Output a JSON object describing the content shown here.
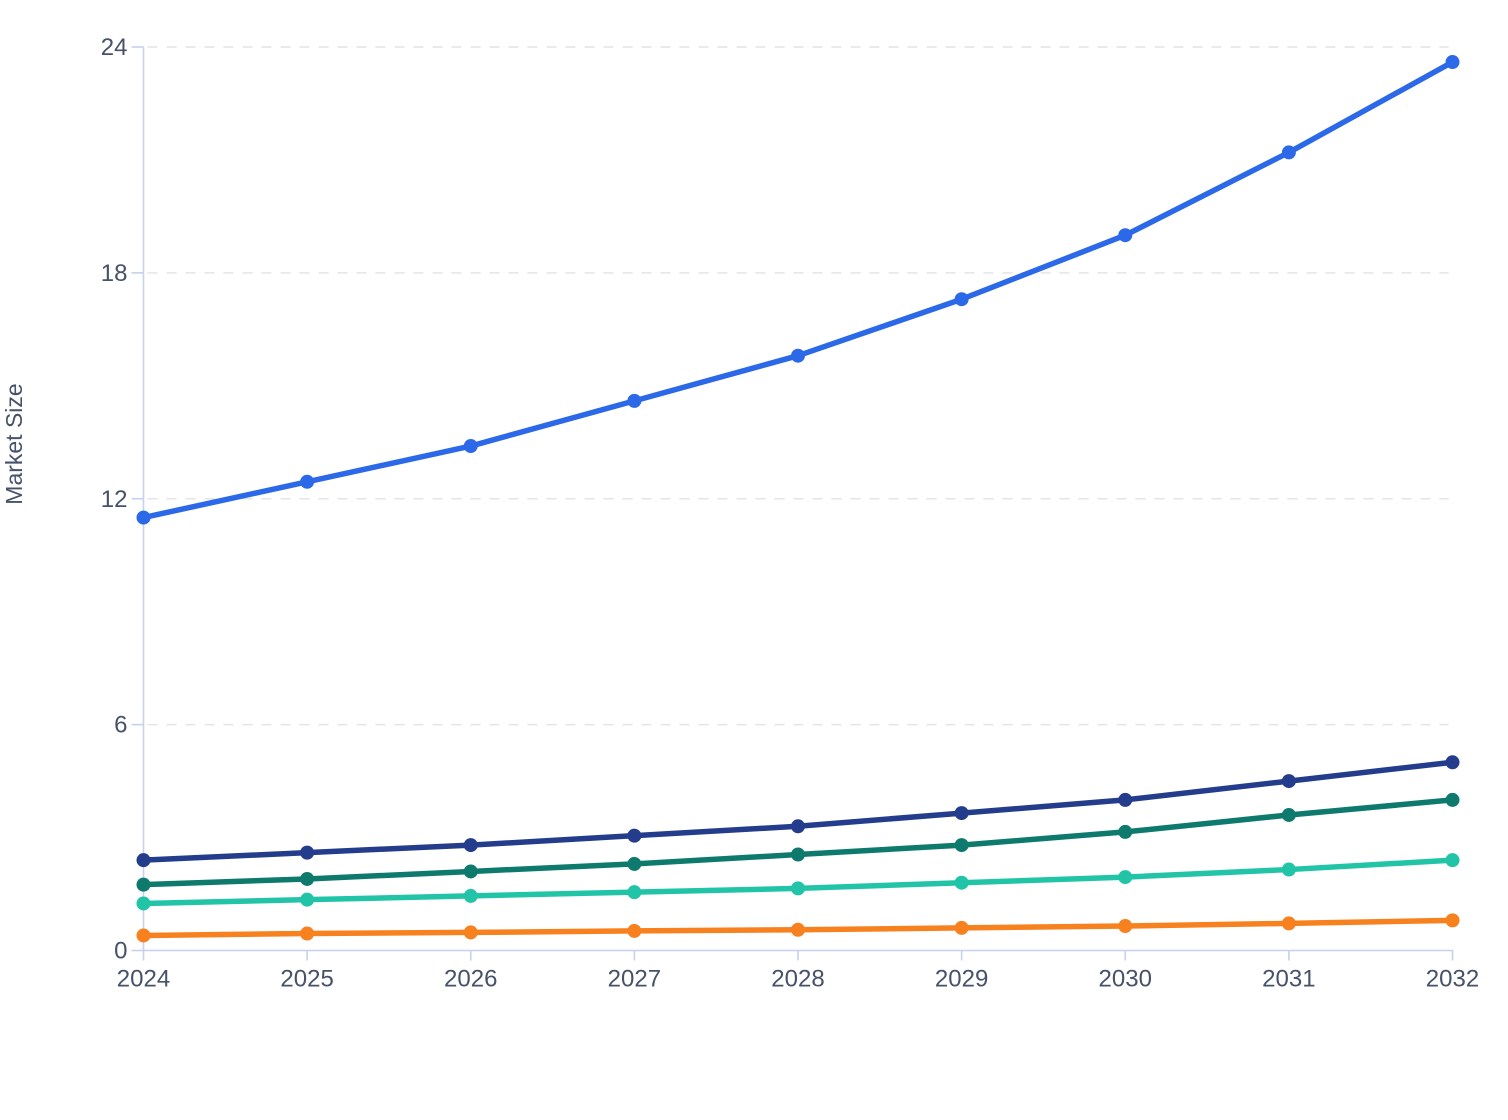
{
  "page": {
    "background": "#ffffff"
  },
  "chart_data": {
    "type": "line",
    "title": "",
    "xlabel": "",
    "ylabel": "Market Size",
    "x": [
      2024,
      2025,
      2026,
      2027,
      2028,
      2029,
      2030,
      2031,
      2032
    ],
    "yticks": [
      0,
      6,
      12,
      18,
      24
    ],
    "ylim": [
      0,
      24
    ],
    "grid": "dashed-horizontal",
    "legend": "none",
    "series": [
      {
        "id": "blue",
        "color": "#2c69e8",
        "values": [
          11.5,
          12.45,
          13.4,
          14.6,
          15.8,
          17.3,
          19.0,
          21.2,
          23.6
        ]
      },
      {
        "id": "navy",
        "color": "#243c8c",
        "values": [
          2.4,
          2.6,
          2.8,
          3.05,
          3.3,
          3.65,
          4.0,
          4.5,
          5.0
        ]
      },
      {
        "id": "dark-green",
        "color": "#0e7a6e",
        "values": [
          1.75,
          1.9,
          2.1,
          2.3,
          2.55,
          2.8,
          3.15,
          3.6,
          4.0
        ]
      },
      {
        "id": "teal",
        "color": "#22c4a8",
        "values": [
          1.25,
          1.35,
          1.45,
          1.55,
          1.65,
          1.8,
          1.95,
          2.15,
          2.4
        ]
      },
      {
        "id": "orange",
        "color": "#f8811f",
        "values": [
          0.4,
          0.45,
          0.48,
          0.52,
          0.55,
          0.6,
          0.65,
          0.72,
          0.8
        ]
      }
    ],
    "colors": {
      "axis_line": "#c5d1ee",
      "grid_line": "#e4e4e9",
      "tick_text": "#46516a"
    }
  }
}
